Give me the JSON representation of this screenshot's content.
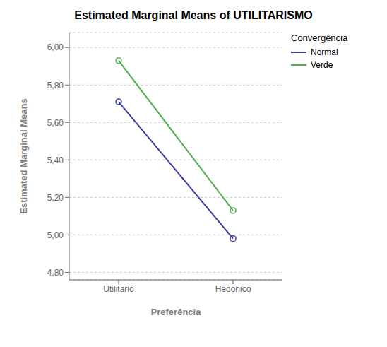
{
  "chart_data": {
    "type": "line",
    "title": "Estimated Marginal Means of UTILITARISMO",
    "xlabel": "Preferência",
    "ylabel": "Estimated Marginal Means",
    "categories": [
      "Utilitario",
      "Hedonico"
    ],
    "series": [
      {
        "name": "Normal",
        "color": "#3a3d9e",
        "values": [
          5.71,
          4.98
        ]
      },
      {
        "name": "Verde",
        "color": "#4db04d",
        "values": [
          5.93,
          5.13
        ]
      }
    ],
    "legend_title": "Convergência",
    "legend": "right",
    "ylim": [
      4.76,
      6.08
    ],
    "yticks": [
      {
        "value": 4.8,
        "label": "4,80"
      },
      {
        "value": 5.0,
        "label": "5,00"
      },
      {
        "value": 5.2,
        "label": "5,20"
      },
      {
        "value": 5.4,
        "label": "5,40"
      },
      {
        "value": 5.6,
        "label": "5,60"
      },
      {
        "value": 5.8,
        "label": "5,80"
      },
      {
        "value": 6.0,
        "label": "6,00"
      }
    ],
    "grid": true,
    "marker": "circle"
  }
}
